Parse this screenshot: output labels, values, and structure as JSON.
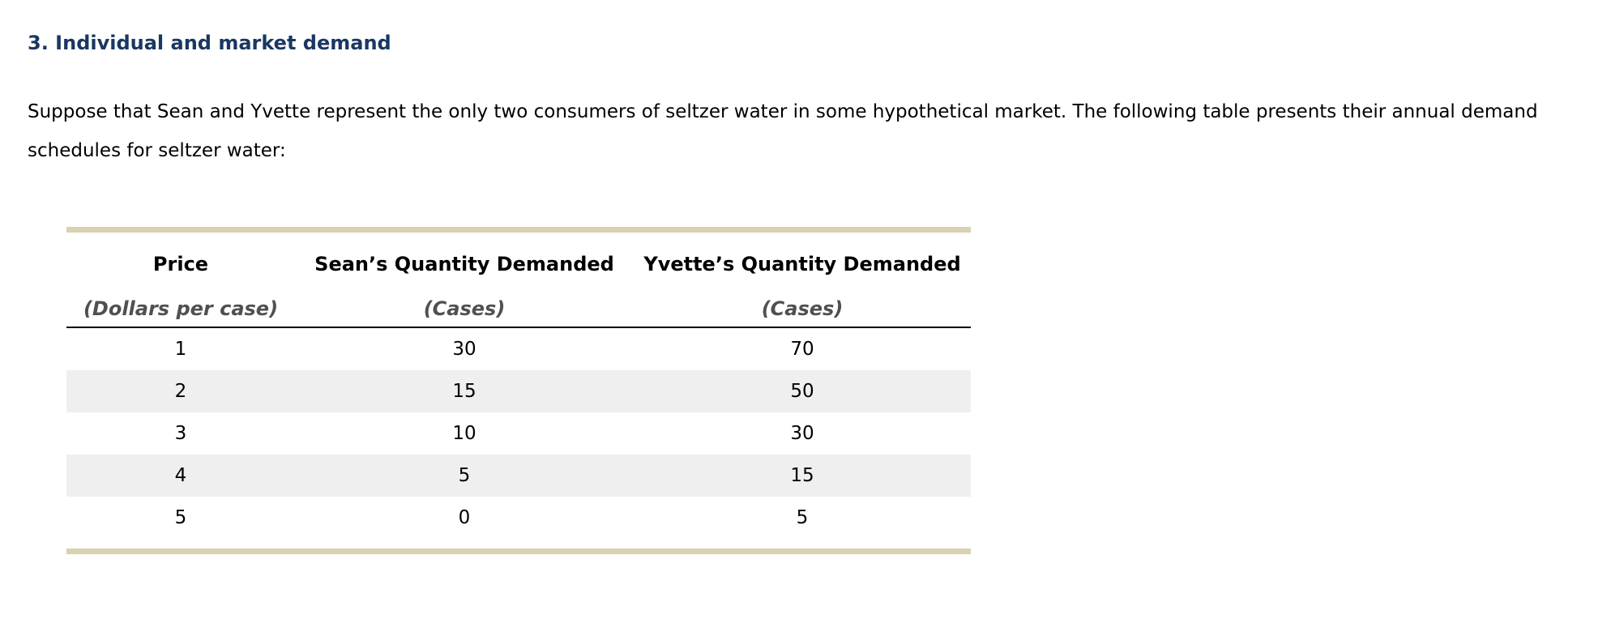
{
  "section": {
    "heading": "3. Individual and market demand"
  },
  "intro": {
    "text": "Suppose that Sean and Yvette represent the only two consumers of seltzer water in some hypothetical market. The following table presents their annual demand schedules for seltzer water:"
  },
  "table": {
    "headers": [
      {
        "title": "Price",
        "unit": "(Dollars per case)"
      },
      {
        "title": "Sean’s Quantity Demanded",
        "unit": "(Cases)"
      },
      {
        "title": "Yvette’s Quantity Demanded",
        "unit": "(Cases)"
      }
    ],
    "rows": [
      [
        "1",
        "30",
        "70"
      ],
      [
        "2",
        "15",
        "50"
      ],
      [
        "3",
        "10",
        "30"
      ],
      [
        "4",
        "5",
        "15"
      ],
      [
        "5",
        "0",
        "5"
      ]
    ],
    "colors": {
      "rule": "#d9d1b0",
      "shaded_row": "#efefef",
      "heading": "#1a3763"
    }
  }
}
